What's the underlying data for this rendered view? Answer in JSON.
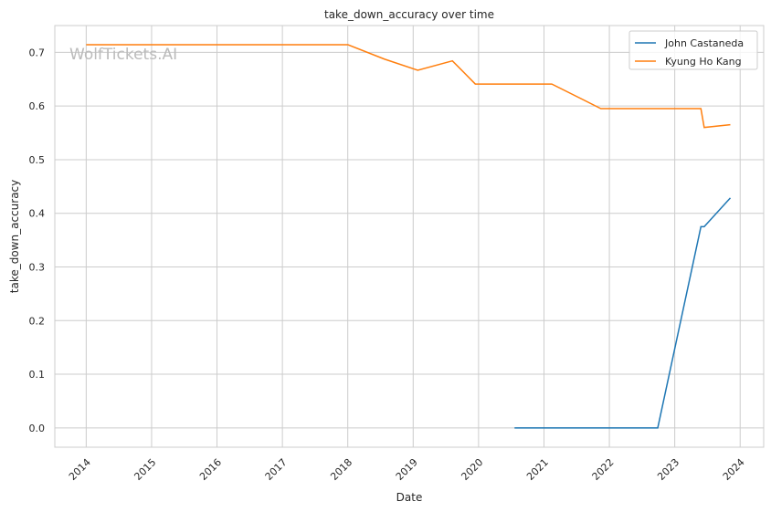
{
  "chart_data": {
    "type": "line",
    "title": "take_down_accuracy over time",
    "xlabel": "Date",
    "ylabel": "take_down_accuracy",
    "watermark": "WolfTickets.AI",
    "xlim": [
      2013.52,
      2024.36
    ],
    "ylim": [
      -0.036,
      0.75
    ],
    "x_ticks": [
      2014,
      2015,
      2016,
      2017,
      2018,
      2019,
      2020,
      2021,
      2022,
      2023,
      2024
    ],
    "y_ticks": [
      "0.0",
      "0.1",
      "0.2",
      "0.3",
      "0.4",
      "0.5",
      "0.6",
      "0.7"
    ],
    "grid": true,
    "legend_position": "top-right",
    "series": [
      {
        "name": "John Castaneda",
        "color": "#1f77b4",
        "x": [
          2020.55,
          2022.74,
          2023.4,
          2023.45,
          2023.85
        ],
        "y": [
          0.0,
          0.0,
          0.375,
          0.375,
          0.4286
        ]
      },
      {
        "name": "Kyung Ho Kang",
        "color": "#ff7f0e",
        "x": [
          2014.0,
          2018.0,
          2018.56,
          2019.07,
          2019.6,
          2019.95,
          2021.12,
          2021.87,
          2023.4,
          2023.45,
          2023.85
        ],
        "y": [
          0.7143,
          0.7143,
          0.6875,
          0.6667,
          0.6842,
          0.641,
          0.641,
          0.5952,
          0.5952,
          0.56,
          0.5652
        ]
      }
    ]
  }
}
